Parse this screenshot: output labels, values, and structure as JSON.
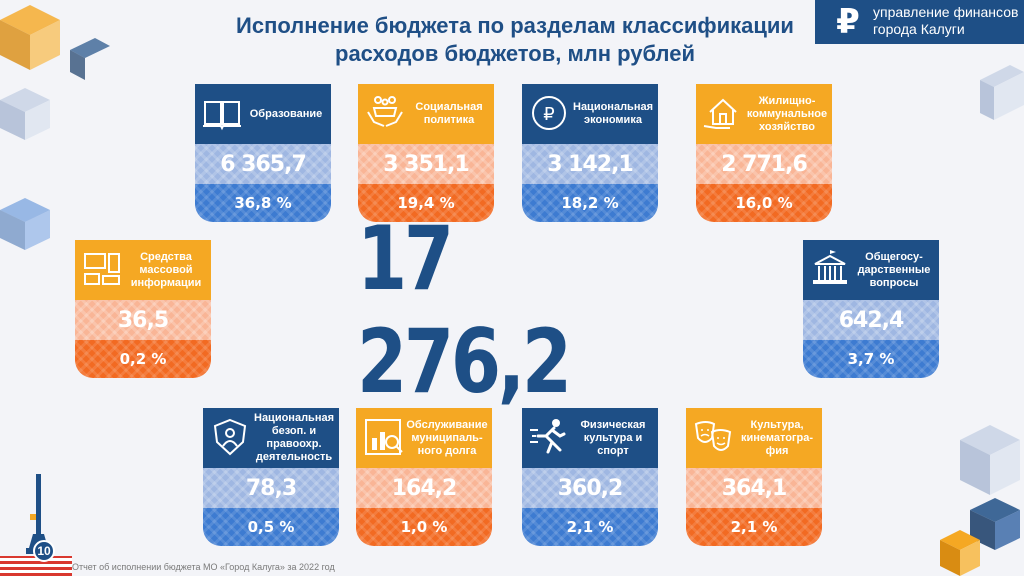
{
  "header": {
    "title_line1": "Исполнение бюджета по разделам классификации",
    "title_line2": "расходов бюджетов, млн рублей"
  },
  "logo": {
    "icon": "ruble-icon",
    "symbol": "₽",
    "line1": "управление финансов",
    "line2": "города Калуги"
  },
  "total": "17 276,2",
  "cards": [
    {
      "id": "education",
      "label": "Образование",
      "value": "6 365,7",
      "percent": "36,8 %",
      "icon": "book-icon",
      "color": "blue"
    },
    {
      "id": "social",
      "label": "Социальная политика",
      "value": "3 351,1",
      "percent": "19,4 %",
      "icon": "family-hands-icon",
      "color": "orange"
    },
    {
      "id": "economy",
      "label": "Национальная экономика",
      "value": "3 142,1",
      "percent": "18,2 %",
      "icon": "ruble-coin-icon",
      "color": "blue"
    },
    {
      "id": "housing",
      "label": "Жилищно-коммунальное хозяйство",
      "value": "2 771,6",
      "percent": "16,0 %",
      "icon": "house-hand-icon",
      "color": "orange"
    },
    {
      "id": "media",
      "label": "Средства массовой информации",
      "value": "36,5",
      "percent": "0,2 %",
      "icon": "media-devices-icon",
      "color": "orange"
    },
    {
      "id": "general",
      "label": "Общегосу-дарственные вопросы",
      "value": "642,4",
      "percent": "3,7 %",
      "icon": "government-building-icon",
      "color": "blue"
    },
    {
      "id": "security",
      "label": "Национальная безоп. и правоохр. деятельность",
      "value": "78,3",
      "percent": "0,5 %",
      "icon": "shield-person-icon",
      "color": "blue"
    },
    {
      "id": "debt",
      "label": "Обслуживание муниципаль-ного долга",
      "value": "164,2",
      "percent": "1,0 %",
      "icon": "debt-chart-icon",
      "color": "orange"
    },
    {
      "id": "sport",
      "label": "Физическая культура и спорт",
      "value": "360,2",
      "percent": "2,1 %",
      "icon": "runner-icon",
      "color": "blue"
    },
    {
      "id": "culture",
      "label": "Культура, кинематогра-фия",
      "value": "364,1",
      "percent": "2,1 %",
      "icon": "theater-masks-icon",
      "color": "orange"
    }
  ],
  "footer": {
    "page_number": "10",
    "text": "Отчет об исполнении бюджета МО «Город Калуга» за 2022 год"
  },
  "colors": {
    "blue": "#1e4f86",
    "orange": "#f5a823",
    "light_blue": "#9fb7e2",
    "mid_blue": "#3d7bd1",
    "light_orange": "#f9b596",
    "dark_orange": "#f26a22"
  }
}
